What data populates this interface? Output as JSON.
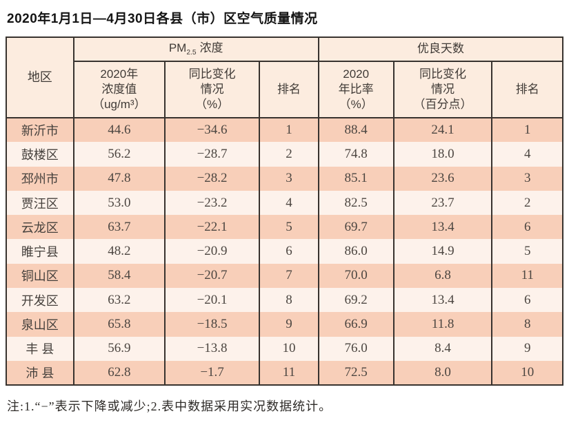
{
  "title": "2020年1月1日—4月30日各县（市）区空气质量情况",
  "colors": {
    "header_bg": "#fcecdf",
    "row_odd_bg": "#f8cfb9",
    "row_even_bg": "#fdf2eb",
    "border": "#37322e",
    "text": "#4c4641"
  },
  "table": {
    "header": {
      "region": "地区",
      "pm_group": {
        "prefix": "PM",
        "sub": "2.5",
        "suffix": "浓度"
      },
      "good_group": "优良天数",
      "pm_value": "2020年\n浓度值\n（ug/m³）",
      "pm_change": "同比变化\n情况\n（%）",
      "pm_rank": "排名",
      "good_ratio": "2020\n年比率\n（%）",
      "good_change": "同比变化\n情况\n（百分点）",
      "good_rank": "排名"
    },
    "rows": [
      {
        "region": "新沂市",
        "pm_value": "44.6",
        "pm_change": "−34.6",
        "pm_rank": "1",
        "good_ratio": "88.4",
        "good_change": "24.1",
        "good_rank": "1"
      },
      {
        "region": "鼓楼区",
        "pm_value": "56.2",
        "pm_change": "−28.7",
        "pm_rank": "2",
        "good_ratio": "74.8",
        "good_change": "18.0",
        "good_rank": "4"
      },
      {
        "region": "邳州市",
        "pm_value": "47.8",
        "pm_change": "−28.2",
        "pm_rank": "3",
        "good_ratio": "85.1",
        "good_change": "23.6",
        "good_rank": "3"
      },
      {
        "region": "贾汪区",
        "pm_value": "53.0",
        "pm_change": "−23.2",
        "pm_rank": "4",
        "good_ratio": "82.5",
        "good_change": "23.7",
        "good_rank": "2"
      },
      {
        "region": "云龙区",
        "pm_value": "63.7",
        "pm_change": "−22.1",
        "pm_rank": "5",
        "good_ratio": "69.7",
        "good_change": "13.4",
        "good_rank": "6"
      },
      {
        "region": "睢宁县",
        "pm_value": "48.2",
        "pm_change": "−20.9",
        "pm_rank": "6",
        "good_ratio": "86.0",
        "good_change": "14.9",
        "good_rank": "5"
      },
      {
        "region": "铜山区",
        "pm_value": "58.4",
        "pm_change": "−20.7",
        "pm_rank": "7",
        "good_ratio": "70.0",
        "good_change": "6.8",
        "good_rank": "11"
      },
      {
        "region": "开发区",
        "pm_value": "63.2",
        "pm_change": "−20.1",
        "pm_rank": "8",
        "good_ratio": "69.2",
        "good_change": "13.4",
        "good_rank": "6"
      },
      {
        "region": "泉山区",
        "pm_value": "65.8",
        "pm_change": "−18.5",
        "pm_rank": "9",
        "good_ratio": "66.9",
        "good_change": "11.8",
        "good_rank": "8"
      },
      {
        "region": "丰 县",
        "pm_value": "56.9",
        "pm_change": "−13.8",
        "pm_rank": "10",
        "good_ratio": "76.0",
        "good_change": "8.4",
        "good_rank": "9"
      },
      {
        "region": "沛 县",
        "pm_value": "62.8",
        "pm_change": "−1.7",
        "pm_rank": "11",
        "good_ratio": "72.5",
        "good_change": "8.0",
        "good_rank": "10"
      }
    ]
  },
  "footnote": "注:1.“−”表示下降或减少;2.表中数据采用实况数据统计。"
}
